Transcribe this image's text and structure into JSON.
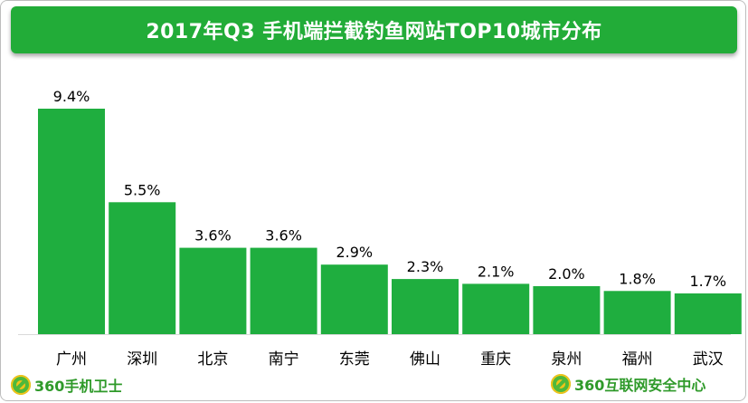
{
  "title": "2017年Q3 手机端拦截钓鱼网站TOP10城市分布",
  "colors": {
    "bar": "#1fae3f",
    "title_bg": "#22ac38",
    "axis": "#d9d9d9",
    "text": "#000000"
  },
  "chart_data": {
    "type": "bar",
    "title": "2017年Q3 手机端拦截钓鱼网站TOP10城市分布",
    "categories": [
      "广州",
      "深圳",
      "北京",
      "南宁",
      "东莞",
      "佛山",
      "重庆",
      "泉州",
      "福州",
      "武汉"
    ],
    "values": [
      9.4,
      5.5,
      3.6,
      3.6,
      2.9,
      2.3,
      2.1,
      2.0,
      1.8,
      1.7
    ],
    "value_labels": [
      "9.4%",
      "5.5%",
      "3.6%",
      "3.6%",
      "2.9%",
      "2.3%",
      "2.1%",
      "2.0%",
      "1.8%",
      "1.7%"
    ],
    "unit": "%",
    "xlabel": "",
    "ylabel": "",
    "ylim": [
      0,
      9.4
    ],
    "grid": false,
    "legend": "none"
  },
  "logos": {
    "left": "360手机卫士",
    "right": "360互联网安全中心",
    "left_icon": "360-shield-logo-icon",
    "right_icon": "360-shield-logo-icon"
  }
}
